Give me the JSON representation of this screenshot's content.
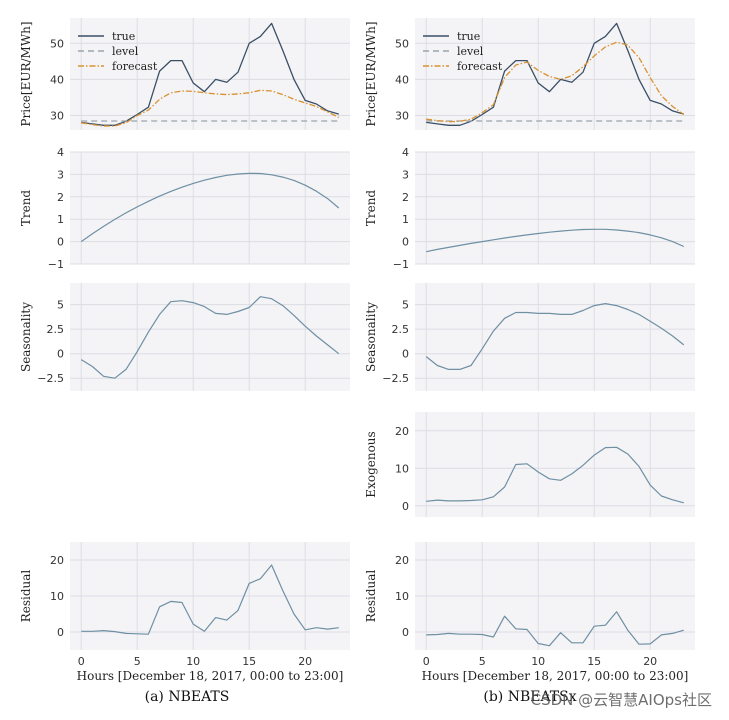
{
  "colors": {
    "true": "#3a4f66",
    "level": "#9aa3ad",
    "forecast": "#d9912f",
    "component": "#6f8fa3"
  },
  "captions": {
    "left": "(a) NBEATS",
    "right": "(b) NBEATSx"
  },
  "watermark": "CSDN @云智慧AIOps社区",
  "chart_data": [
    {
      "id": "a-price",
      "column": "left",
      "row": 0,
      "type": "line",
      "ylabel": "Price[EUR/MWh]",
      "xlabel": "",
      "ylim": [
        26,
        57
      ],
      "yticks": [
        30,
        40,
        50
      ],
      "xlim": [
        -1,
        24
      ],
      "xticks": [
        0,
        5,
        10,
        15,
        20
      ],
      "show_xticklabels": false,
      "legend": "top-left",
      "x": [
        0,
        1,
        2,
        3,
        4,
        5,
        6,
        7,
        8,
        9,
        10,
        11,
        12,
        13,
        14,
        15,
        16,
        17,
        18,
        19,
        20,
        21,
        22,
        23
      ],
      "series": [
        {
          "name": "true",
          "style": "solid",
          "values": [
            28.1,
            27.7,
            27.3,
            27.3,
            28.4,
            30.3,
            32.3,
            42.3,
            45.2,
            45.2,
            39.0,
            36.6,
            40.0,
            39.2,
            42.0,
            50.0,
            51.9,
            55.5,
            48.0,
            40.0,
            34.2,
            33.2,
            31.3,
            30.4
          ]
        },
        {
          "name": "level",
          "style": "dashed",
          "values": [
            28.5,
            28.5,
            28.5,
            28.5,
            28.5,
            28.5,
            28.5,
            28.5,
            28.5,
            28.5,
            28.5,
            28.5,
            28.5,
            28.5,
            28.5,
            28.5,
            28.5,
            28.5,
            28.5,
            28.5,
            28.5,
            28.5,
            28.5,
            28.5
          ]
        },
        {
          "name": "forecast",
          "style": "dashdot",
          "values": [
            28.0,
            27.5,
            27.1,
            27.1,
            28.0,
            30.0,
            31.5,
            34.5,
            36.3,
            36.8,
            36.7,
            36.3,
            36.0,
            35.8,
            36.0,
            36.3,
            37.0,
            36.8,
            35.8,
            34.5,
            33.5,
            32.5,
            31.0,
            29.5
          ]
        }
      ]
    },
    {
      "id": "a-trend",
      "column": "left",
      "row": 1,
      "type": "line",
      "ylabel": "Trend",
      "xlabel": "",
      "ylim": [
        -1,
        4
      ],
      "yticks": [
        -1,
        0,
        1,
        2,
        3,
        4
      ],
      "xlim": [
        -1,
        24
      ],
      "xticks": [
        0,
        5,
        10,
        15,
        20
      ],
      "show_xticklabels": false,
      "x": [
        0,
        1,
        2,
        3,
        4,
        5,
        6,
        7,
        8,
        9,
        10,
        11,
        12,
        13,
        14,
        15,
        16,
        17,
        18,
        19,
        20,
        21,
        22,
        23
      ],
      "series": [
        {
          "name": "",
          "style": "component",
          "values": [
            0.0,
            0.35,
            0.68,
            0.99,
            1.28,
            1.55,
            1.8,
            2.03,
            2.24,
            2.43,
            2.6,
            2.74,
            2.86,
            2.96,
            3.02,
            3.05,
            3.04,
            2.98,
            2.88,
            2.73,
            2.52,
            2.25,
            1.92,
            1.5
          ]
        }
      ]
    },
    {
      "id": "a-seasonality",
      "column": "left",
      "row": 2,
      "type": "line",
      "ylabel": "Seasonality",
      "xlabel": "",
      "ylim": [
        -3.8,
        7.2
      ],
      "yticks": [
        -2.5,
        0.0,
        2.5,
        5.0
      ],
      "xlim": [
        -1,
        24
      ],
      "xticks": [
        0,
        5,
        10,
        15,
        20
      ],
      "show_xticklabels": false,
      "x": [
        0,
        1,
        2,
        3,
        4,
        5,
        6,
        7,
        8,
        9,
        10,
        11,
        12,
        13,
        14,
        15,
        16,
        17,
        18,
        19,
        20,
        21,
        22,
        23
      ],
      "series": [
        {
          "name": "",
          "style": "component",
          "values": [
            -0.6,
            -1.3,
            -2.3,
            -2.5,
            -1.6,
            0.2,
            2.2,
            4.0,
            5.3,
            5.4,
            5.2,
            4.8,
            4.1,
            4.0,
            4.3,
            4.7,
            5.8,
            5.6,
            4.9,
            3.9,
            2.8,
            1.8,
            0.9,
            0.0
          ]
        }
      ]
    },
    {
      "id": "a-residual",
      "column": "left",
      "row": 4,
      "type": "line",
      "ylabel": "Residual",
      "xlabel": "Hours [December 18, 2017, 00:00 to 23:00]",
      "ylim": [
        -5,
        25
      ],
      "yticks": [
        0,
        10,
        20
      ],
      "xlim": [
        -1,
        24
      ],
      "xticks": [
        0,
        5,
        10,
        15,
        20
      ],
      "show_xticklabels": true,
      "x": [
        0,
        1,
        2,
        3,
        4,
        5,
        6,
        7,
        8,
        9,
        10,
        11,
        12,
        13,
        14,
        15,
        16,
        17,
        18,
        19,
        20,
        21,
        22,
        23
      ],
      "series": [
        {
          "name": "",
          "style": "component",
          "values": [
            0.2,
            0.2,
            0.4,
            0.1,
            -0.4,
            -0.5,
            -0.6,
            7.0,
            8.5,
            8.2,
            2.2,
            0.2,
            4.0,
            3.3,
            6.0,
            13.5,
            14.8,
            18.6,
            11.5,
            5.0,
            0.6,
            1.2,
            0.8,
            1.2
          ]
        }
      ]
    },
    {
      "id": "b-price",
      "column": "right",
      "row": 0,
      "type": "line",
      "ylabel": "Price[EUR/MWh]",
      "xlabel": "",
      "ylim": [
        26,
        57
      ],
      "yticks": [
        30,
        40,
        50
      ],
      "xlim": [
        -1,
        24
      ],
      "xticks": [
        0,
        5,
        10,
        15,
        20
      ],
      "show_xticklabels": false,
      "legend": "top-left",
      "x": [
        0,
        1,
        2,
        3,
        4,
        5,
        6,
        7,
        8,
        9,
        10,
        11,
        12,
        13,
        14,
        15,
        16,
        17,
        18,
        19,
        20,
        21,
        22,
        23
      ],
      "series": [
        {
          "name": "true",
          "style": "solid",
          "values": [
            28.1,
            27.7,
            27.3,
            27.3,
            28.4,
            30.3,
            32.3,
            42.3,
            45.2,
            45.2,
            39.0,
            36.6,
            40.0,
            39.2,
            42.0,
            50.0,
            51.9,
            55.5,
            48.0,
            40.0,
            34.2,
            33.2,
            31.3,
            30.4
          ]
        },
        {
          "name": "level",
          "style": "dashed",
          "values": [
            28.5,
            28.5,
            28.5,
            28.5,
            28.5,
            28.5,
            28.5,
            28.5,
            28.5,
            28.5,
            28.5,
            28.5,
            28.5,
            28.5,
            28.5,
            28.5,
            28.5,
            28.5,
            28.5,
            28.5,
            28.5,
            28.5,
            28.5,
            28.5
          ]
        },
        {
          "name": "forecast",
          "style": "dashdot",
          "values": [
            29.0,
            28.6,
            28.3,
            28.4,
            29.0,
            30.8,
            33.0,
            40.5,
            44.0,
            44.8,
            42.5,
            40.8,
            40.0,
            41.0,
            43.5,
            46.5,
            49.0,
            50.3,
            49.5,
            46.0,
            40.5,
            35.5,
            32.5,
            30.3
          ]
        }
      ]
    },
    {
      "id": "b-trend",
      "column": "right",
      "row": 1,
      "type": "line",
      "ylabel": "Trend",
      "xlabel": "",
      "ylim": [
        -1,
        4
      ],
      "yticks": [
        -1,
        0,
        1,
        2,
        3,
        4
      ],
      "xlim": [
        -1,
        24
      ],
      "xticks": [
        0,
        5,
        10,
        15,
        20
      ],
      "show_xticklabels": false,
      "x": [
        0,
        1,
        2,
        3,
        4,
        5,
        6,
        7,
        8,
        9,
        10,
        11,
        12,
        13,
        14,
        15,
        16,
        17,
        18,
        19,
        20,
        21,
        22,
        23
      ],
      "series": [
        {
          "name": "",
          "style": "component",
          "values": [
            -0.45,
            -0.35,
            -0.26,
            -0.17,
            -0.08,
            0.0,
            0.08,
            0.16,
            0.23,
            0.3,
            0.36,
            0.42,
            0.47,
            0.51,
            0.54,
            0.55,
            0.55,
            0.52,
            0.47,
            0.4,
            0.3,
            0.17,
            0.0,
            -0.22
          ]
        }
      ]
    },
    {
      "id": "b-seasonality",
      "column": "right",
      "row": 2,
      "type": "line",
      "ylabel": "Seasonality",
      "xlabel": "",
      "ylim": [
        -3.8,
        7.2
      ],
      "yticks": [
        -2.5,
        0.0,
        2.5,
        5.0
      ],
      "xlim": [
        -1,
        24
      ],
      "xticks": [
        0,
        5,
        10,
        15,
        20
      ],
      "show_xticklabels": false,
      "x": [
        0,
        1,
        2,
        3,
        4,
        5,
        6,
        7,
        8,
        9,
        10,
        11,
        12,
        13,
        14,
        15,
        16,
        17,
        18,
        19,
        20,
        21,
        22,
        23
      ],
      "series": [
        {
          "name": "",
          "style": "component",
          "values": [
            -0.3,
            -1.2,
            -1.6,
            -1.6,
            -1.2,
            0.5,
            2.3,
            3.6,
            4.2,
            4.2,
            4.1,
            4.1,
            4.0,
            4.0,
            4.4,
            4.9,
            5.1,
            4.9,
            4.5,
            4.0,
            3.3,
            2.6,
            1.8,
            0.9
          ]
        }
      ]
    },
    {
      "id": "b-exogenous",
      "column": "right",
      "row": 3,
      "type": "line",
      "ylabel": "Exogenous",
      "xlabel": "",
      "ylim": [
        -3,
        25
      ],
      "yticks": [
        0,
        10,
        20
      ],
      "xlim": [
        -1,
        24
      ],
      "xticks": [
        0,
        5,
        10,
        15,
        20
      ],
      "show_xticklabels": false,
      "x": [
        0,
        1,
        2,
        3,
        4,
        5,
        6,
        7,
        8,
        9,
        10,
        11,
        12,
        13,
        14,
        15,
        16,
        17,
        18,
        19,
        20,
        21,
        22,
        23
      ],
      "series": [
        {
          "name": "",
          "style": "component",
          "values": [
            1.2,
            1.5,
            1.3,
            1.3,
            1.4,
            1.6,
            2.4,
            5.0,
            11.0,
            11.2,
            9.0,
            7.2,
            6.8,
            8.5,
            10.8,
            13.5,
            15.5,
            15.6,
            13.8,
            10.5,
            5.5,
            2.6,
            1.6,
            0.8
          ]
        }
      ]
    },
    {
      "id": "b-residual",
      "column": "right",
      "row": 4,
      "type": "line",
      "ylabel": "Residual",
      "xlabel": "Hours [December 18, 2017, 00:00 to 23:00]",
      "ylim": [
        -5,
        25
      ],
      "yticks": [
        0,
        10,
        20
      ],
      "xlim": [
        -1,
        24
      ],
      "xticks": [
        0,
        5,
        10,
        15,
        20
      ],
      "show_xticklabels": true,
      "x": [
        0,
        1,
        2,
        3,
        4,
        5,
        6,
        7,
        8,
        9,
        10,
        11,
        12,
        13,
        14,
        15,
        16,
        17,
        18,
        19,
        20,
        21,
        22,
        23
      ],
      "series": [
        {
          "name": "",
          "style": "component",
          "values": [
            -0.8,
            -0.7,
            -0.4,
            -0.6,
            -0.6,
            -0.7,
            -1.4,
            4.4,
            0.9,
            0.7,
            -3.2,
            -3.8,
            -0.2,
            -3.0,
            -3.0,
            1.6,
            1.9,
            5.6,
            0.5,
            -3.4,
            -3.3,
            -0.8,
            -0.4,
            0.5
          ]
        }
      ]
    }
  ]
}
